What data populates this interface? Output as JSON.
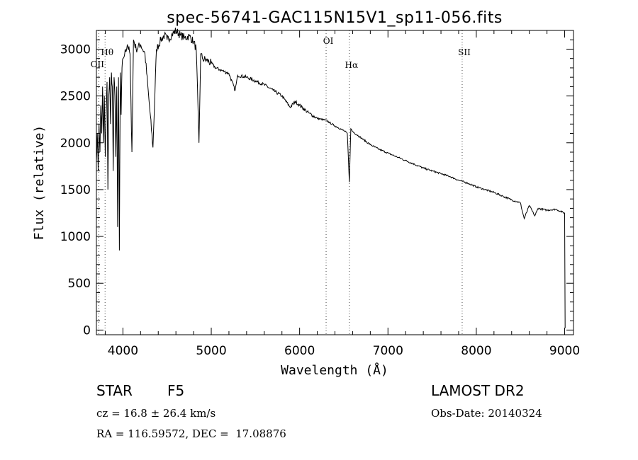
{
  "chart_data": {
    "type": "line",
    "title": "spec-56741-GAC115N15V1_sp11-056.fits",
    "xlabel": "Wavelength (Å)",
    "ylabel": "Flux (relative)",
    "xlim": [
      3700,
      9100
    ],
    "ylim": [
      -50,
      3200
    ],
    "xticks": [
      4000,
      5000,
      6000,
      7000,
      8000,
      9000
    ],
    "yticks": [
      0,
      500,
      1000,
      1500,
      2000,
      2500,
      3000
    ],
    "line_markers": [
      {
        "label": "OII",
        "wavelength": 3727
      },
      {
        "label": "Hθ",
        "wavelength": 3798
      },
      {
        "label": "OI",
        "wavelength": 6300
      },
      {
        "label": "Hα",
        "wavelength": 6563
      },
      {
        "label": "SII",
        "wavelength": 7840
      }
    ],
    "series": [
      {
        "name": "flux",
        "x": [
          3700,
          3710,
          3720,
          3730,
          3740,
          3750,
          3760,
          3770,
          3780,
          3790,
          3800,
          3810,
          3820,
          3830,
          3840,
          3850,
          3860,
          3870,
          3880,
          3890,
          3900,
          3910,
          3920,
          3930,
          3940,
          3950,
          3960,
          3970,
          3980,
          3990,
          4000,
          4020,
          4050,
          4080,
          4102,
          4120,
          4150,
          4200,
          4250,
          4300,
          4340,
          4380,
          4430,
          4470,
          4500,
          4550,
          4600,
          4650,
          4700,
          4750,
          4800,
          4830,
          4861,
          4880,
          4900,
          4950,
          5000,
          5050,
          5100,
          5150,
          5200,
          5270,
          5300,
          5400,
          5500,
          5600,
          5700,
          5800,
          5893,
          5950,
          6000,
          6100,
          6200,
          6300,
          6400,
          6500,
          6540,
          6563,
          6580,
          6600,
          6700,
          6800,
          6900,
          7000,
          7100,
          7200,
          7300,
          7400,
          7500,
          7600,
          7700,
          7800,
          7900,
          8000,
          8100,
          8200,
          8300,
          8400,
          8498,
          8542,
          8600,
          8662,
          8700,
          8800,
          8900,
          8950,
          9000,
          9005
        ],
        "values": [
          1800,
          2100,
          1700,
          2200,
          1900,
          2400,
          2100,
          2600,
          2000,
          2500,
          1850,
          2300,
          2650,
          1500,
          2500,
          2700,
          2200,
          2750,
          2600,
          1700,
          2700,
          2500,
          1850,
          2600,
          1100,
          2700,
          850,
          2750,
          2300,
          2800,
          2900,
          2950,
          3050,
          2950,
          1900,
          3100,
          3000,
          3050,
          2950,
          2400,
          1950,
          3000,
          3100,
          3150,
          3100,
          3150,
          3200,
          3150,
          3120,
          3140,
          3080,
          3000,
          2000,
          2950,
          2900,
          2880,
          2850,
          2800,
          2780,
          2760,
          2740,
          2560,
          2720,
          2700,
          2660,
          2620,
          2560,
          2500,
          2380,
          2440,
          2400,
          2320,
          2260,
          2240,
          2180,
          2130,
          2100,
          1580,
          2150,
          2120,
          2050,
          1980,
          1930,
          1890,
          1850,
          1810,
          1770,
          1730,
          1700,
          1670,
          1640,
          1600,
          1570,
          1530,
          1500,
          1470,
          1430,
          1390,
          1360,
          1190,
          1330,
          1220,
          1300,
          1280,
          1290,
          1270,
          1250,
          20
        ]
      }
    ]
  },
  "info": {
    "object_class": "STAR",
    "subclass": "F5",
    "survey": "LAMOST DR2",
    "redshift": "cz = 16.8 ± 26.4 km/s",
    "obs_date": "Obs-Date: 20140324",
    "coords": "RA = 116.59572, DEC =  17.08876"
  }
}
